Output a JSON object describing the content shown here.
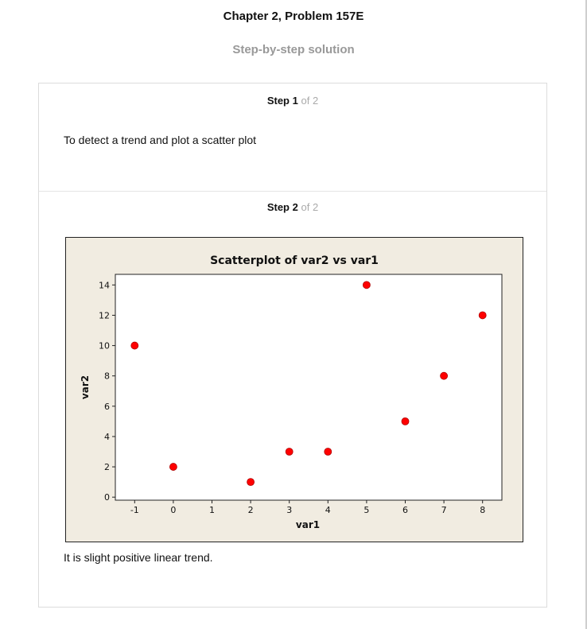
{
  "page": {
    "title": "Chapter 2, Problem 157E",
    "subtitle": "Step-by-step solution"
  },
  "steps": [
    {
      "label": "Step",
      "number": "1",
      "of_text": "of 2",
      "text": "To detect a trend and plot a scatter plot"
    },
    {
      "label": "Step",
      "number": "2",
      "of_text": "of 2",
      "text": "It is slight positive linear trend."
    }
  ],
  "chart_data": {
    "type": "scatter",
    "title": "Scatterplot of var2 vs var1",
    "xlabel": "var1",
    "ylabel": "var2",
    "x": [
      -1,
      0,
      2,
      3,
      4,
      5,
      6,
      7,
      8
    ],
    "y": [
      10,
      2,
      1,
      3,
      3,
      14,
      5,
      8,
      12
    ],
    "xlim": [
      -1.5,
      8.5
    ],
    "ylim": [
      -0.2,
      14.7
    ],
    "xticks": [
      -1,
      0,
      1,
      2,
      3,
      4,
      5,
      6,
      7,
      8
    ],
    "yticks": [
      0,
      2,
      4,
      6,
      8,
      10,
      12,
      14
    ],
    "point_color": "#ff0000",
    "background": "#f1ece1",
    "grid": false
  }
}
